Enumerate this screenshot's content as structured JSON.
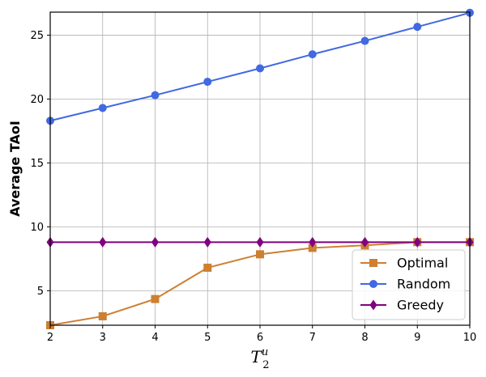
{
  "chart_data": {
    "type": "line",
    "xlabel": {
      "base": "T",
      "sub": "2",
      "sup": "u"
    },
    "ylabel": "Average TAoI",
    "xlim": [
      2,
      10
    ],
    "ylim": [
      2.3,
      26.8
    ],
    "xticks": [
      "2",
      "3",
      "4",
      "5",
      "6",
      "7",
      "8",
      "9",
      "10"
    ],
    "yticks": [
      "5",
      "10",
      "15",
      "20",
      "25"
    ],
    "grid": true,
    "legend_position": "lower-right",
    "x": [
      2,
      3,
      4,
      5,
      6,
      7,
      8,
      9,
      10
    ],
    "series": [
      {
        "name": "Optimal",
        "color": "#cd7f32",
        "marker": "square",
        "values": [
          2.3,
          3.0,
          4.35,
          6.8,
          7.85,
          8.35,
          8.55,
          8.8,
          8.8
        ]
      },
      {
        "name": "Random",
        "color": "#4169e1",
        "marker": "circle",
        "values": [
          18.3,
          19.3,
          20.3,
          21.35,
          22.4,
          23.5,
          24.55,
          25.65,
          26.75
        ]
      },
      {
        "name": "Greedy",
        "color": "#800080",
        "marker": "diamond",
        "values": [
          8.8,
          8.8,
          8.8,
          8.8,
          8.8,
          8.8,
          8.8,
          8.8,
          8.8
        ]
      }
    ]
  }
}
